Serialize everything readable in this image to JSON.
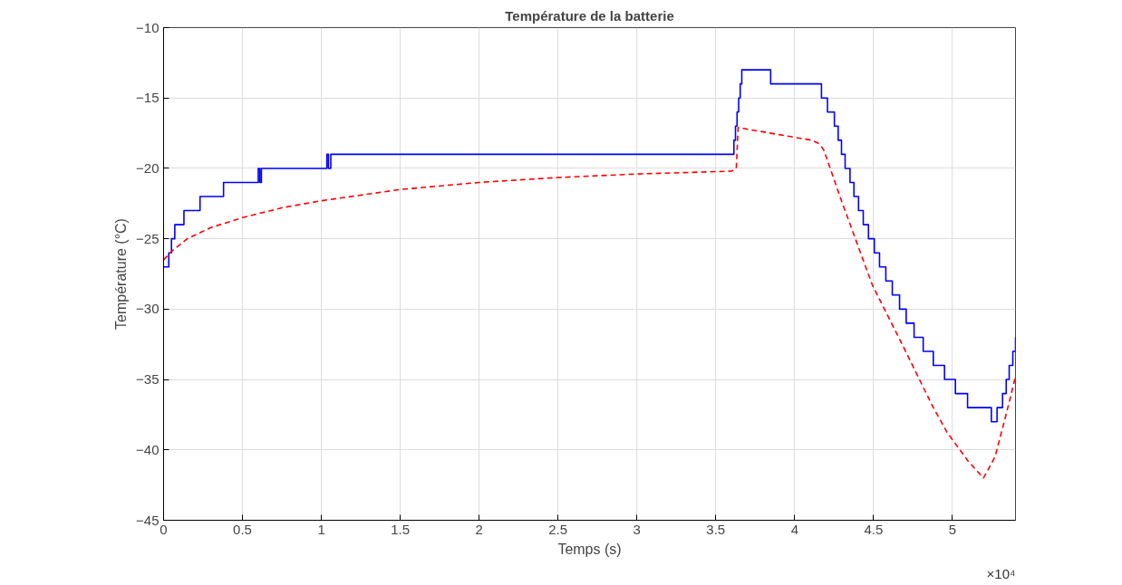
{
  "chart_data": {
    "type": "line",
    "title": "Température de la batterie",
    "xlabel": "Temps (s)",
    "ylabel": "Température (°C)",
    "xlim": [
      0,
      5.4
    ],
    "ylim": [
      -45,
      -10
    ],
    "xticks": [
      0,
      0.5,
      1,
      1.5,
      2,
      2.5,
      3,
      3.5,
      4,
      4.5,
      5
    ],
    "yticks": [
      -45,
      -40,
      -35,
      -30,
      -25,
      -20,
      -15,
      -10
    ],
    "annotations": [
      "×10⁴"
    ],
    "grid": true,
    "marker": "none",
    "series": [
      {
        "type": "step",
        "color": "#0000ff",
        "line_style": "solid",
        "x": [
          0,
          0.033,
          0.05,
          0.071,
          0.129,
          0.231,
          0.38,
          0.6,
          0.61,
          0.62,
          1.035,
          1.045,
          1.06,
          1.09,
          3.615,
          3.625,
          3.635,
          3.645,
          3.655,
          3.665,
          3.848,
          3.86,
          4.17,
          4.208,
          4.252,
          4.276,
          4.297,
          4.32,
          4.351,
          4.376,
          4.405,
          4.435,
          4.468,
          4.505,
          4.538,
          4.578,
          4.619,
          4.665,
          4.707,
          4.757,
          4.815,
          4.879,
          4.95,
          5.019,
          5.096,
          5.247,
          5.283,
          5.318,
          5.341,
          5.36,
          5.383,
          5.4
        ],
        "values": [
          -27,
          -26,
          -25,
          -24,
          -23,
          -22,
          -21,
          -20,
          -21,
          -20,
          -19,
          -20,
          -19,
          -19,
          -18,
          -17,
          -16,
          -15,
          -14,
          -13,
          -14,
          -14,
          -15,
          -16,
          -17,
          -18,
          -19,
          -20,
          -21,
          -22,
          -23,
          -24,
          -25,
          -26,
          -27,
          -28,
          -29,
          -30,
          -31,
          -32,
          -33,
          -34,
          -35,
          -36,
          -37,
          -38,
          -37,
          -36,
          -35,
          -34,
          -33,
          -32
        ]
      },
      {
        "color": "#ff0000",
        "line_style": "dashed",
        "x": [
          0,
          0.06,
          0.15,
          0.3,
          0.5,
          0.75,
          1,
          1.5,
          2,
          2.5,
          3,
          3.6,
          3.63,
          3.642,
          3.9,
          4.108,
          4.156,
          4.185,
          4.3,
          4.493,
          4.686,
          4.879,
          4.969,
          5.1,
          5.197,
          5.27,
          5.34,
          5.4
        ],
        "values": [
          -26.5,
          -25.8,
          -25.0,
          -24.2,
          -23.5,
          -22.8,
          -22.3,
          -21.5,
          -21.0,
          -20.65,
          -20.4,
          -20.2,
          -20.0,
          -17.1,
          -17.6,
          -18.0,
          -18.25,
          -18.7,
          -22.4,
          -28.3,
          -32.6,
          -37.0,
          -38.8,
          -40.8,
          -42.0,
          -40.5,
          -37.5,
          -34.8
        ]
      }
    ]
  }
}
